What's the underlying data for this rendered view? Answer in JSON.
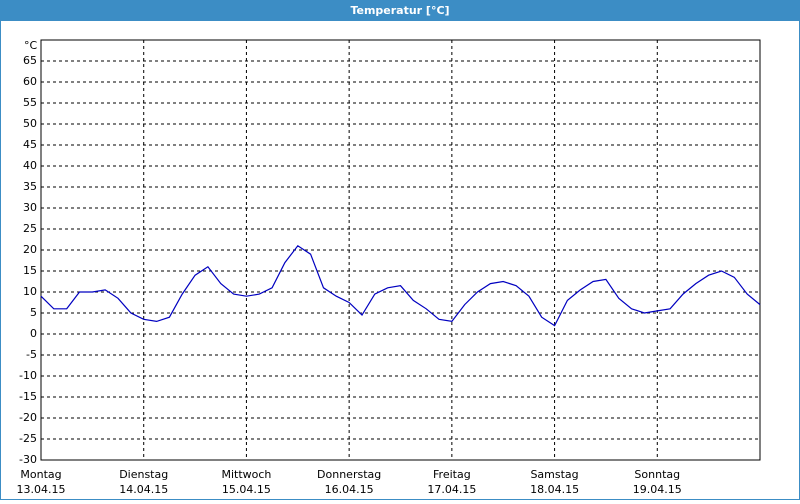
{
  "chart_data": {
    "type": "line",
    "title": "Temperatur [°C]",
    "y_label": "°C",
    "days": [
      {
        "name": "Montag",
        "date": "13.04.15"
      },
      {
        "name": "Dienstag",
        "date": "14.04.15"
      },
      {
        "name": "Mittwoch",
        "date": "15.04.15"
      },
      {
        "name": "Donnerstag",
        "date": "16.04.15"
      },
      {
        "name": "Freitag",
        "date": "17.04.15"
      },
      {
        "name": "Samstag",
        "date": "18.04.15"
      },
      {
        "name": "Sonntag",
        "date": "19.04.15"
      }
    ],
    "color": "#0000c0",
    "values": [
      9,
      6,
      6,
      10,
      10,
      10.5,
      8.5,
      5,
      3.5,
      3,
      4,
      9.5,
      14,
      16,
      12,
      9.5,
      9,
      9.5,
      11,
      17,
      21,
      19,
      11,
      9,
      7.5,
      4.5,
      9.5,
      11,
      11.5,
      8,
      6,
      3.5,
      3,
      7,
      10,
      12,
      12.5,
      11.5,
      9,
      4,
      2,
      8,
      10.5,
      12.5,
      13,
      8.5,
      6,
      5,
      5.5,
      6,
      9.5,
      12,
      14,
      15,
      13.5,
      9.5,
      7
    ],
    "ylim": [
      -30,
      70
    ],
    "yticks": [
      -30,
      -25,
      -20,
      -15,
      -10,
      -5,
      0,
      5,
      10,
      15,
      20,
      25,
      30,
      35,
      40,
      45,
      50,
      55,
      60,
      65
    ],
    "grid": true
  }
}
